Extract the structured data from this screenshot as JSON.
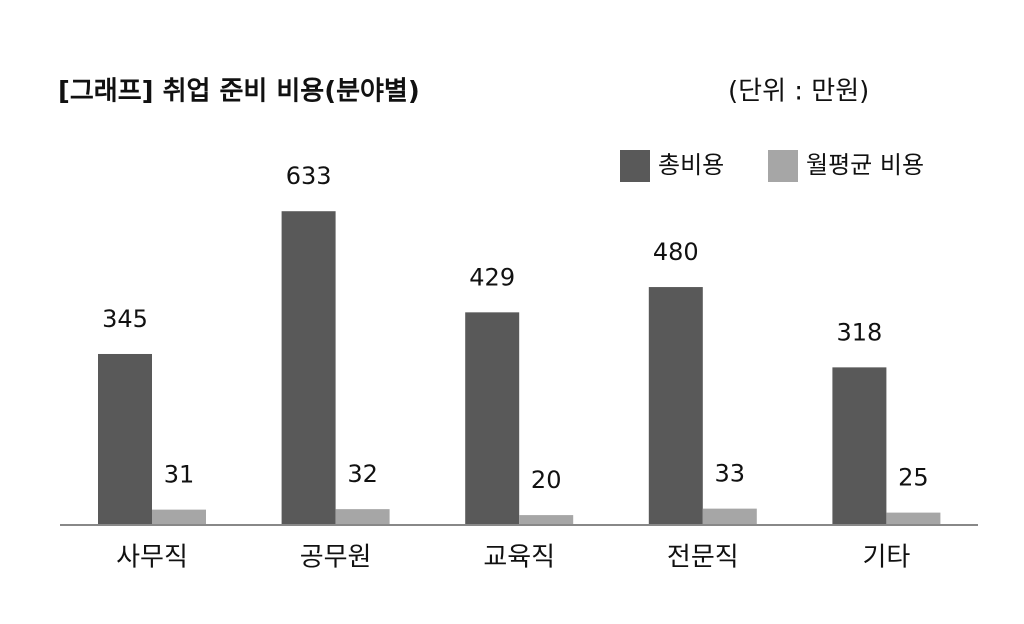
{
  "chart_data": {
    "type": "bar",
    "title": "[그래프] 취업 준비 비용(분야별)",
    "subtitle": "(단위 : 만원)",
    "categories": [
      "사무직",
      "공무원",
      "교육직",
      "전문직",
      "기타"
    ],
    "series": [
      {
        "name": "총비용",
        "color": "#595959",
        "values": [
          345,
          633,
          429,
          480,
          318
        ]
      },
      {
        "name": "월평균 비용",
        "color": "#a6a6a6",
        "values": [
          31,
          32,
          20,
          33,
          25
        ]
      }
    ],
    "ylim": [
      0,
      700
    ],
    "legend": "top-right",
    "grid": false
  }
}
